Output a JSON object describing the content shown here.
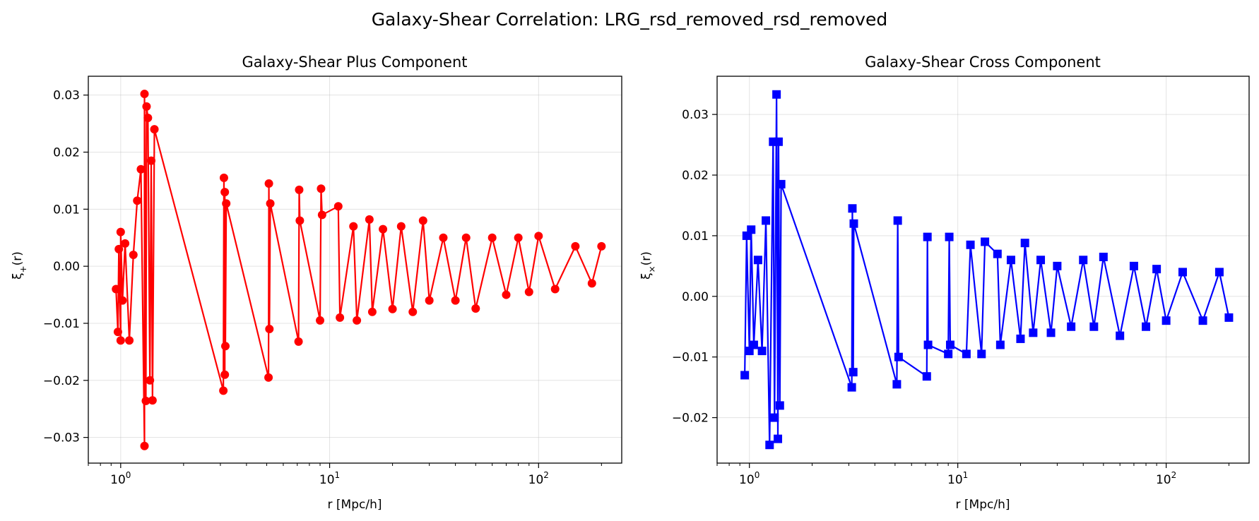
{
  "figure": {
    "suptitle": "Galaxy-Shear Correlation: LRG_rsd_removed_rsd_removed"
  },
  "chart_data": [
    {
      "type": "line",
      "title": "Galaxy-Shear Plus Component",
      "xlabel": "r [Mpc/h]",
      "ylabel": "ξ+(r)",
      "xscale": "log",
      "xlim": [
        0.7,
        250
      ],
      "ylim": [
        -0.0345,
        0.0333
      ],
      "xticks": [
        1,
        10,
        100
      ],
      "xtick_labels": [
        "10^0",
        "10^1",
        "10^2"
      ],
      "yticks": [
        -0.03,
        -0.02,
        -0.01,
        0.0,
        0.01,
        0.02,
        0.03
      ],
      "ytick_labels": [
        "−0.03",
        "−0.02",
        "−0.01",
        "0.00",
        "0.01",
        "0.02",
        "0.03"
      ],
      "grid": true,
      "color": "#ff0000",
      "marker": "circle",
      "series": [
        {
          "x": [
            0.95,
            0.97,
            0.98,
            1.0,
            1.0,
            1.02,
            1.05,
            1.1,
            1.15,
            1.2,
            1.25,
            1.3,
            1.3,
            1.32,
            1.33,
            1.35,
            1.38,
            1.4,
            1.42,
            1.45,
            3.1,
            3.12,
            3.15,
            3.15,
            3.17,
            3.2,
            5.1,
            5.12,
            5.15,
            5.2,
            7.1,
            7.15,
            7.2,
            9.0,
            9.1,
            9.2,
            11.0,
            11.2,
            13.0,
            13.5,
            15.5,
            16.0,
            18,
            20,
            22,
            25,
            28,
            30,
            35,
            40,
            45,
            50,
            60,
            70,
            80,
            90,
            100,
            120,
            150,
            180,
            200
          ],
          "y": [
            -0.004,
            -0.0115,
            0.003,
            -0.013,
            0.006,
            -0.006,
            0.004,
            -0.013,
            0.002,
            0.0115,
            0.017,
            -0.0315,
            0.0302,
            -0.0236,
            0.028,
            0.026,
            -0.02,
            0.0185,
            -0.0235,
            0.024,
            -0.0218,
            0.0155,
            -0.019,
            0.013,
            -0.014,
            0.011,
            -0.0195,
            0.0145,
            -0.011,
            0.011,
            -0.0132,
            0.0134,
            0.008,
            -0.0095,
            0.0136,
            0.009,
            0.0105,
            -0.009,
            0.007,
            -0.0095,
            0.0082,
            -0.008,
            0.0065,
            -0.0075,
            0.007,
            -0.008,
            0.008,
            -0.006,
            0.005,
            -0.006,
            0.005,
            -0.0074,
            0.005,
            -0.005,
            0.005,
            -0.0045,
            0.0053,
            -0.004,
            0.0035,
            -0.003,
            0.0035
          ]
        }
      ]
    },
    {
      "type": "line",
      "title": "Galaxy-Shear Cross Component",
      "xlabel": "r [Mpc/h]",
      "ylabel": "ξ×(r)",
      "xscale": "log",
      "xlim": [
        0.7,
        250
      ],
      "ylim": [
        -0.0275,
        0.0363
      ],
      "xticks": [
        1,
        10,
        100
      ],
      "xtick_labels": [
        "10^0",
        "10^1",
        "10^2"
      ],
      "yticks": [
        -0.02,
        -0.01,
        0.0,
        0.01,
        0.02,
        0.03
      ],
      "ytick_labels": [
        "−0.02",
        "−0.01",
        "0.00",
        "0.01",
        "0.02",
        "0.03"
      ],
      "grid": true,
      "color": "#0000ff",
      "marker": "square",
      "series": [
        {
          "x": [
            0.95,
            0.97,
            1.0,
            1.02,
            1.05,
            1.1,
            1.15,
            1.2,
            1.25,
            1.3,
            1.32,
            1.35,
            1.37,
            1.38,
            1.4,
            1.42,
            3.1,
            3.12,
            3.15,
            3.17,
            5.1,
            5.15,
            5.2,
            7.1,
            7.15,
            7.2,
            9.0,
            9.1,
            9.2,
            11.0,
            11.5,
            13.0,
            13.5,
            15.5,
            16.0,
            18,
            20,
            21,
            23,
            25,
            28,
            30,
            35,
            40,
            45,
            50,
            60,
            70,
            80,
            90,
            100,
            120,
            150,
            180,
            200
          ],
          "y": [
            -0.013,
            0.01,
            -0.009,
            0.011,
            -0.008,
            0.006,
            -0.009,
            0.0125,
            -0.0245,
            0.0255,
            -0.02,
            0.0333,
            -0.0235,
            0.0255,
            -0.018,
            0.0185,
            -0.015,
            0.0145,
            -0.0125,
            0.012,
            -0.0145,
            0.0125,
            -0.01,
            -0.0132,
            0.0098,
            -0.008,
            -0.0095,
            0.0098,
            -0.008,
            -0.0095,
            0.0085,
            -0.0095,
            0.009,
            0.007,
            -0.008,
            0.006,
            -0.007,
            0.0088,
            -0.006,
            0.006,
            -0.006,
            0.005,
            -0.005,
            0.006,
            -0.005,
            0.0065,
            -0.0065,
            0.005,
            -0.005,
            0.0045,
            -0.004,
            0.004,
            -0.004,
            0.004,
            -0.0035
          ]
        }
      ]
    }
  ]
}
